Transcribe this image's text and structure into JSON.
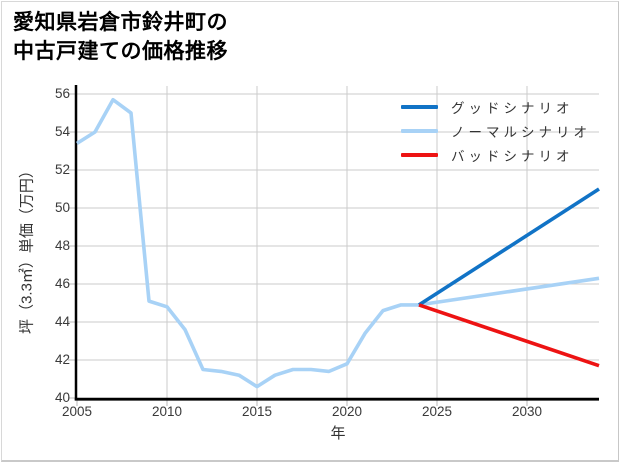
{
  "title": {
    "line1": "愛知県岩倉市鈴井町の",
    "line2": "中古戸建ての価格推移"
  },
  "axes": {
    "x_label": "年",
    "y_label": "坪（3.3㎡）単価（万円）",
    "x_ticks": [
      "2005",
      "2010",
      "2015",
      "2020",
      "2025",
      "2030"
    ],
    "y_ticks": [
      "40",
      "42",
      "44",
      "46",
      "48",
      "50",
      "52",
      "54",
      "56"
    ]
  },
  "legend": {
    "items": [
      {
        "label": "グッドシナリオ",
        "color": "#1173c6"
      },
      {
        "label": "ノーマルシナリオ",
        "color": "#a8d2f6"
      },
      {
        "label": "バッドシナリオ",
        "color": "#ed1313"
      }
    ]
  },
  "colors": {
    "grid": "#cbcbcb",
    "tick": "#c4c4c4",
    "spine": "#000000"
  },
  "chart_data": {
    "type": "line",
    "title": "愛知県岩倉市鈴井町の中古戸建ての価格推移",
    "xlabel": "年",
    "ylabel": "坪（3.3㎡）単価（万円）",
    "xlim": [
      2005,
      2034
    ],
    "ylim": [
      40,
      56
    ],
    "grid": true,
    "legend_position": "upper right",
    "series": [
      {
        "name": "ノーマルシナリオ",
        "color": "#a8d2f6",
        "x": [
          2005,
          2006,
          2007,
          2008,
          2009,
          2010,
          2011,
          2012,
          2013,
          2014,
          2015,
          2016,
          2017,
          2018,
          2019,
          2020,
          2021,
          2022,
          2023,
          2024,
          2034
        ],
        "y": [
          53.4,
          54.0,
          55.7,
          55.0,
          45.1,
          44.8,
          43.6,
          41.5,
          41.4,
          41.2,
          40.6,
          41.2,
          41.5,
          41.5,
          41.4,
          41.8,
          43.4,
          44.6,
          44.9,
          44.9,
          46.3
        ]
      },
      {
        "name": "グッドシナリオ",
        "color": "#1173c6",
        "x": [
          2024,
          2034
        ],
        "y": [
          44.9,
          51.0
        ]
      },
      {
        "name": "バッドシナリオ",
        "color": "#ed1313",
        "x": [
          2024,
          2034
        ],
        "y": [
          44.9,
          41.7
        ]
      }
    ]
  }
}
